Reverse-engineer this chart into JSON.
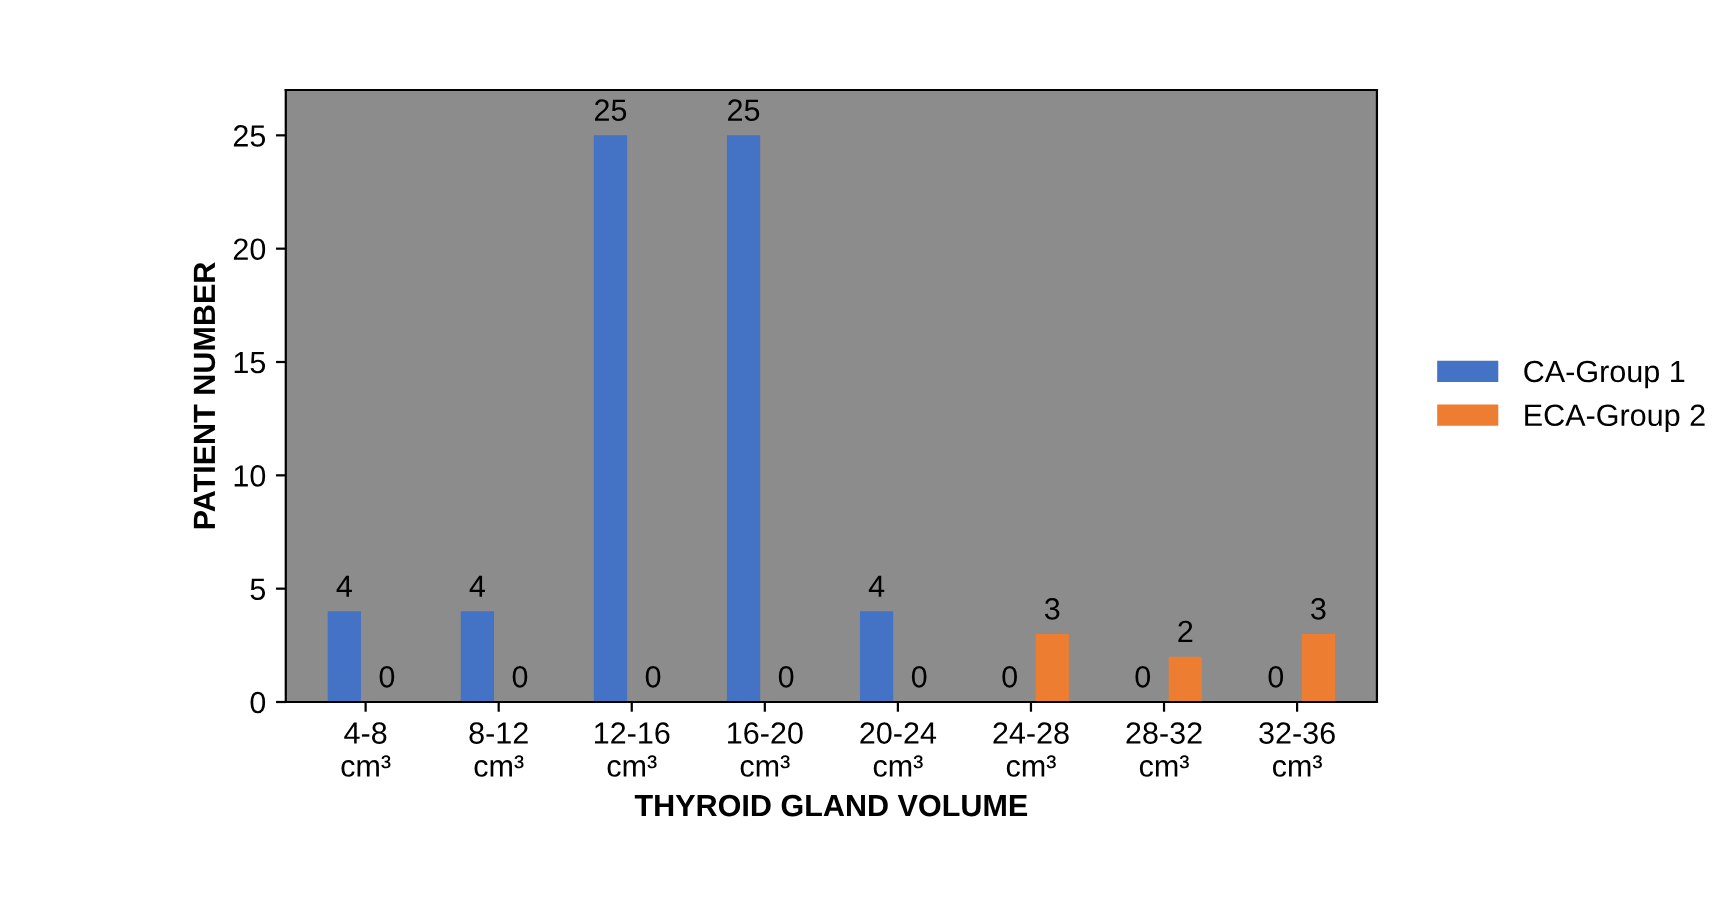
{
  "chart_data": {
    "type": "bar",
    "xlabel": "THYROID GLAND VOLUME",
    "ylabel": "PATIENT NUMBER",
    "categories": [
      "4-8\ncm³",
      "8-12\ncm³",
      "12-16\ncm³",
      "16-20\ncm³",
      "20-24\ncm³",
      "24-28\ncm³",
      "28-32\ncm³",
      "32-36\ncm³"
    ],
    "series": [
      {
        "name": "CA-Group 1",
        "color": "#4472c4",
        "values": [
          4,
          4,
          25,
          25,
          4,
          0,
          0,
          0
        ]
      },
      {
        "name": "ECA-Group 2",
        "color": "#ed7d31",
        "values": [
          0,
          0,
          0,
          0,
          0,
          3,
          2,
          3
        ]
      }
    ],
    "ylim": [
      0,
      27
    ],
    "yticks": [
      0,
      5,
      10,
      15,
      20,
      25
    ],
    "data_labels": true,
    "legend": "right",
    "grid": false
  }
}
